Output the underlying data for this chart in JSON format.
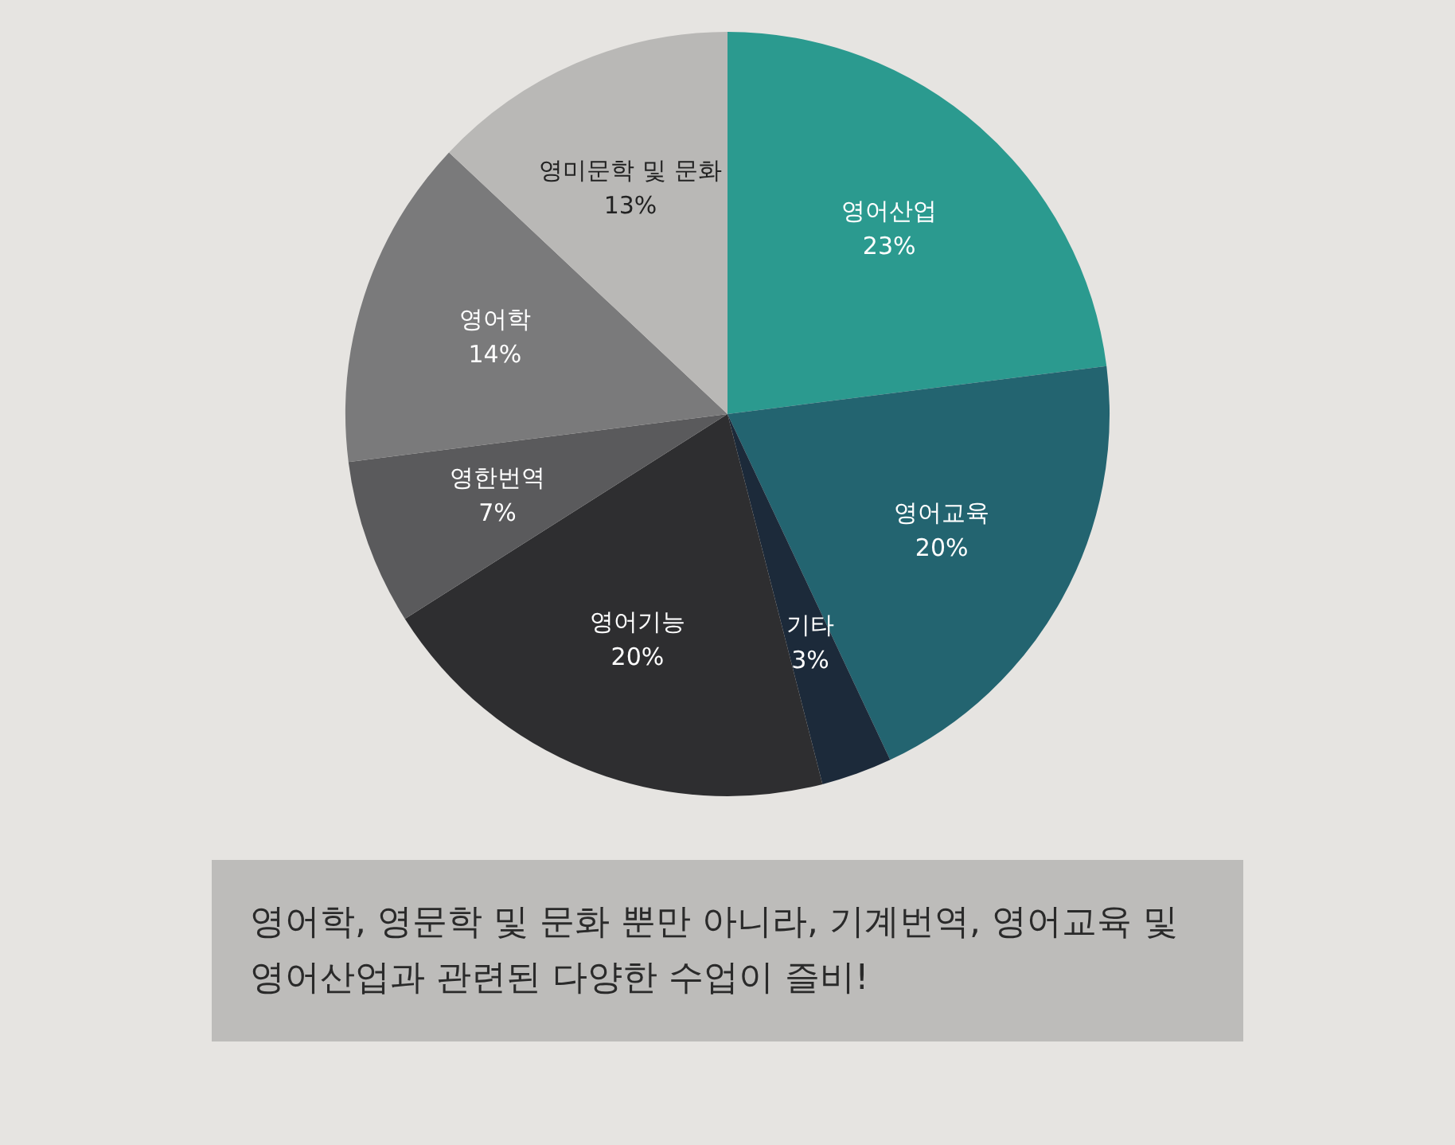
{
  "chart_data": {
    "type": "pie",
    "categories": [
      "영어산업",
      "영어교육",
      "기타",
      "영어기능",
      "영한번역",
      "영어학",
      "영미문학 및 문화"
    ],
    "values": [
      23,
      20,
      3,
      20,
      7,
      14,
      13
    ],
    "value_labels": [
      "23%",
      "20%",
      "3%",
      "20%",
      "7%",
      "14%",
      "13%"
    ],
    "colors": [
      "#2b9a8f",
      "#236470",
      "#1c2a3a",
      "#2e2e30",
      "#5a5a5c",
      "#7a7a7b",
      "#b9b8b6"
    ],
    "legend": false,
    "annotations": [
      "영어학, 영문학 및 문화 뿐만 아니라, 기계번역, 영어교육 및 영어산업과 관련된 다양한 수업이 즐비!"
    ]
  }
}
